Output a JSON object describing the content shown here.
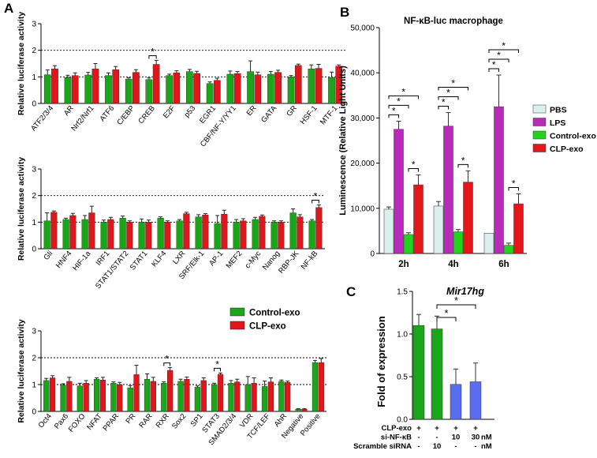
{
  "figure": {
    "panel_a": "A",
    "panel_b": "B",
    "panel_c": "C"
  },
  "colors": {
    "control": "#1aa51a",
    "clp": "#e0161a",
    "pbs": "#d9f0ee",
    "lps": "#b82ab8",
    "b_control": "#22d21f",
    "b_clp": "#e3161b",
    "si_nfkb": "#5a6cf0",
    "c_green": "#1aa51a"
  },
  "chart_data": [
    {
      "type": "bar",
      "id": "A1",
      "ylabel": "Relative luciferase activity",
      "ylim": [
        0,
        3
      ],
      "yticks": [
        "0",
        "1",
        "2",
        "3"
      ],
      "dotted_lines": [
        1,
        2
      ],
      "categories": [
        "ATF2/3/4",
        "AR",
        "Nrf2/Nrf1",
        "ATF6",
        "C/EBP",
        "CREB",
        "E2F",
        "p53",
        "EGR1",
        "CBF/NF-Y/YY1",
        "ER",
        "GATA",
        "GR",
        "HSF-1",
        "MTF-1"
      ],
      "series": [
        {
          "name": "Control-exo",
          "values": [
            1.08,
            0.98,
            1.07,
            1.05,
            0.92,
            0.9,
            1.05,
            1.2,
            0.75,
            1.1,
            1.2,
            1.1,
            1.0,
            1.3,
            0.98
          ],
          "errors": [
            0.18,
            0.08,
            0.1,
            0.1,
            0.05,
            0.06,
            0.05,
            0.08,
            0.06,
            0.12,
            0.4,
            0.1,
            0.05,
            0.15,
            0.2
          ]
        },
        {
          "name": "CLP-exo",
          "values": [
            1.3,
            1.05,
            1.3,
            1.27,
            1.17,
            1.47,
            1.15,
            1.13,
            0.87,
            1.12,
            1.08,
            1.17,
            1.43,
            1.32,
            1.4
          ],
          "errors": [
            0.12,
            0.1,
            0.2,
            0.12,
            0.1,
            0.15,
            0.08,
            0.08,
            0.08,
            0.08,
            0.1,
            0.08,
            0.05,
            0.15,
            0.05
          ]
        }
      ],
      "significance": [
        {
          "index": 5,
          "label": "*"
        }
      ]
    },
    {
      "type": "bar",
      "id": "A2",
      "ylabel": "Relative luciferase activity",
      "ylim": [
        0,
        3
      ],
      "yticks": [
        "0",
        "1",
        "2",
        "3"
      ],
      "dotted_lines": [
        1,
        2
      ],
      "categories": [
        "Gli",
        "HNF4",
        "HIF-1a",
        "IRF1",
        "STAT1/STAT2",
        "STAT1",
        "KLF4",
        "LXR",
        "SRF/Elk-1",
        "AP-1",
        "MEF2",
        "c-Myc",
        "Nanog",
        "RBP-JK",
        "NF-kB"
      ],
      "series": [
        {
          "name": "Control-exo",
          "values": [
            1.05,
            1.1,
            1.1,
            1.0,
            1.15,
            1.0,
            1.15,
            1.05,
            1.2,
            0.95,
            1.0,
            1.1,
            1.0,
            1.35,
            1.05
          ],
          "errors": [
            0.3,
            0.05,
            0.15,
            0.08,
            0.08,
            0.12,
            0.05,
            0.05,
            0.08,
            0.3,
            0.1,
            0.08,
            0.05,
            0.15,
            0.05
          ]
        },
        {
          "name": "CLP-exo",
          "values": [
            1.37,
            1.25,
            1.35,
            1.1,
            1.0,
            1.0,
            1.0,
            1.32,
            1.27,
            1.3,
            1.05,
            1.22,
            1.0,
            1.2,
            1.55
          ],
          "errors": [
            0.05,
            0.08,
            0.25,
            0.08,
            0.05,
            0.08,
            0.05,
            0.05,
            0.05,
            0.15,
            0.08,
            0.05,
            0.05,
            0.08,
            0.1
          ]
        }
      ],
      "significance": [
        {
          "index": 14,
          "label": "*"
        }
      ]
    },
    {
      "type": "bar",
      "id": "A3",
      "ylabel": "Relative luciferase activity",
      "ylim": [
        0,
        3
      ],
      "yticks": [
        "0",
        "1",
        "2",
        "3"
      ],
      "dotted_lines": [
        1,
        2
      ],
      "legend": [
        "Control-exo",
        "CLP-exo"
      ],
      "categories": [
        "Oct4",
        "Pax6",
        "FOXO",
        "NFAT",
        "PPAR",
        "PR",
        "RAR",
        "RXR",
        "Sox2",
        "SP1",
        "STAT3",
        "SMAD2/3/4",
        "VDR",
        "TCF/LEF",
        "AhR",
        "Negative",
        "Positive"
      ],
      "series": [
        {
          "name": "Control-exo",
          "values": [
            1.15,
            0.98,
            0.95,
            1.2,
            1.05,
            0.88,
            1.2,
            1.05,
            1.12,
            0.9,
            1.0,
            1.05,
            1.0,
            0.93,
            1.12,
            0.08,
            1.82
          ],
          "errors": [
            0.08,
            0.05,
            0.1,
            0.05,
            0.05,
            0.08,
            0.2,
            0.05,
            0.08,
            0.05,
            0.05,
            0.1,
            0.3,
            0.2,
            0.05,
            0.02,
            0.08
          ]
        },
        {
          "name": "CLP-exo",
          "values": [
            1.25,
            1.12,
            1.05,
            1.17,
            1.0,
            1.37,
            1.12,
            1.53,
            1.2,
            1.15,
            1.38,
            1.1,
            1.05,
            1.1,
            1.08,
            0.08,
            1.82
          ],
          "errors": [
            0.08,
            0.15,
            0.1,
            0.1,
            0.08,
            0.35,
            0.15,
            0.1,
            0.08,
            0.1,
            0.05,
            0.1,
            0.2,
            0.15,
            0.05,
            0.02,
            0.15
          ]
        }
      ],
      "significance": [
        {
          "index": 7,
          "label": "*"
        },
        {
          "index": 10,
          "label": "*"
        }
      ]
    },
    {
      "type": "bar",
      "id": "B",
      "title": "NF-κB-luc macrophage",
      "ylabel": "Luminescence (Relative Light Units)",
      "ylim": [
        0,
        50000
      ],
      "yticks": [
        "0",
        "10,000",
        "20,000",
        "30,000",
        "40,000",
        "50,000"
      ],
      "categories": [
        "2h",
        "4h",
        "6h"
      ],
      "series": [
        {
          "name": "PBS",
          "values": [
            9800,
            10500,
            4500
          ],
          "errors": [
            500,
            1000,
            0
          ]
        },
        {
          "name": "LPS",
          "values": [
            27500,
            28200,
            32500
          ],
          "errors": [
            1800,
            3000,
            7000
          ]
        },
        {
          "name": "Control-exo",
          "values": [
            4200,
            4800,
            1800
          ],
          "errors": [
            400,
            500,
            500
          ]
        },
        {
          "name": "CLP-exo",
          "values": [
            15200,
            15800,
            11000
          ],
          "errors": [
            2200,
            2500,
            2200
          ]
        }
      ],
      "legend": [
        "PBS",
        "LPS",
        "Control-exo",
        "CLP-exo"
      ],
      "significance_label": "*"
    },
    {
      "type": "bar",
      "id": "C",
      "title": "Mir17hg",
      "ylabel": "Fold of expression",
      "ylim": [
        0,
        1.5
      ],
      "yticks": [
        "0.0",
        "0.5",
        "1.0",
        "1.5"
      ],
      "values": [
        1.1,
        1.06,
        0.41,
        0.44
      ],
      "errors": [
        0.13,
        0.15,
        0.18,
        0.22
      ],
      "table": [
        {
          "label": "CLP-exo",
          "cells": [
            "+",
            "+",
            "+",
            "+"
          ],
          "unit": ""
        },
        {
          "label": "si-NF-κB",
          "cells": [
            "-",
            "-",
            "10",
            "30"
          ],
          "unit": "nM"
        },
        {
          "label": "Scramble siRNA",
          "cells": [
            "-",
            "10",
            "-",
            "-"
          ],
          "unit": "nM"
        }
      ],
      "significance": [
        {
          "from": 1,
          "to": 2,
          "label": "*"
        },
        {
          "from": 1,
          "to": 3,
          "label": "*"
        }
      ]
    }
  ]
}
